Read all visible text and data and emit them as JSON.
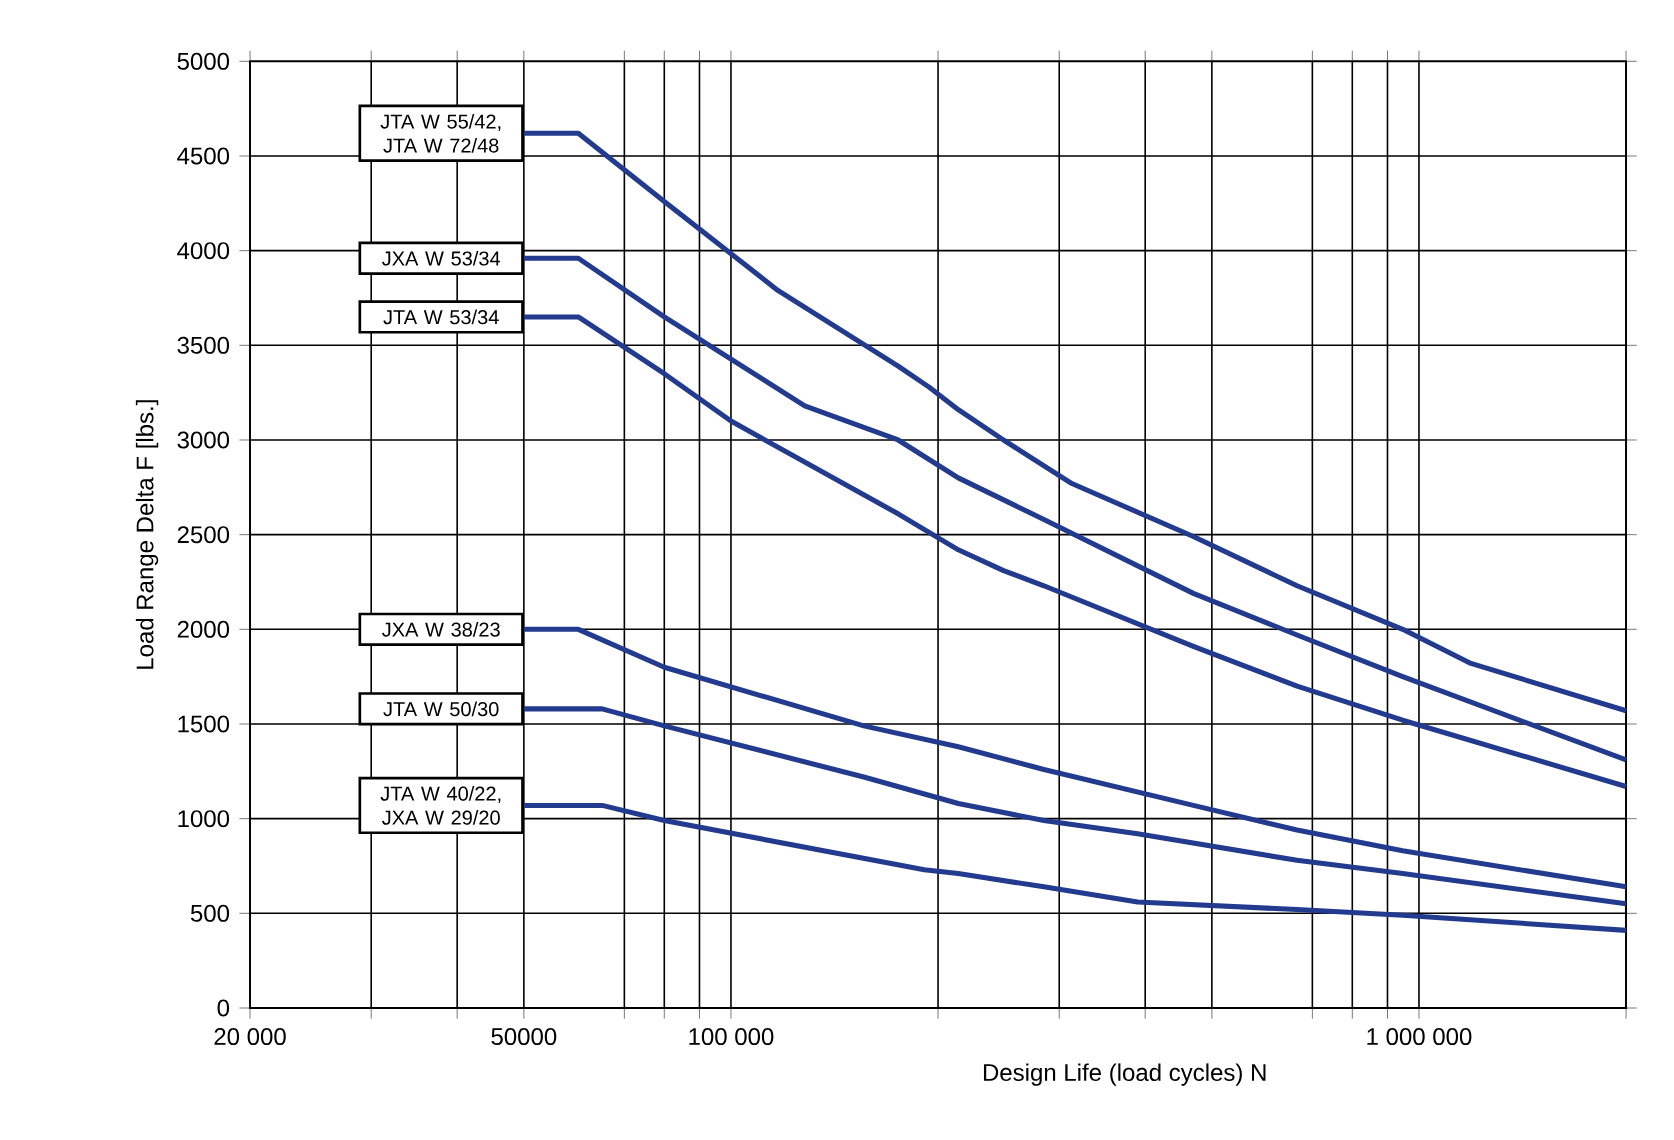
{
  "chart_data": {
    "type": "line",
    "xlabel": "Design Life (load cycles) N",
    "ylabel": "Load Range Delta F [lbs.]",
    "log": "x",
    "grid": true,
    "marker": "none",
    "line_style": "solid",
    "xlim": [
      20000,
      2000000
    ],
    "ylim": [
      0,
      5000
    ],
    "xticks": [
      {
        "value": 20000,
        "label": "20 000"
      },
      {
        "value": 30000,
        "label": null
      },
      {
        "value": 40000,
        "label": null
      },
      {
        "value": 50000,
        "label": "50000"
      },
      {
        "value": 70000,
        "label": null
      },
      {
        "value": 80000,
        "label": null
      },
      {
        "value": 90000,
        "label": null
      },
      {
        "value": 100000,
        "label": "100 000"
      },
      {
        "value": 200000,
        "label": null
      },
      {
        "value": 300000,
        "label": null
      },
      {
        "value": 400000,
        "label": null
      },
      {
        "value": 500000,
        "label": null
      },
      {
        "value": 700000,
        "label": null
      },
      {
        "value": 800000,
        "label": null
      },
      {
        "value": 900000,
        "label": null
      },
      {
        "value": 1000000,
        "label": "1 000 000"
      },
      {
        "value": 2000000,
        "label": null
      }
    ],
    "yticks": [
      0,
      500,
      1000,
      1500,
      2000,
      2500,
      3000,
      3500,
      4000,
      4500,
      5000
    ],
    "series": [
      {
        "name": "JTA W 55/42, JTA W 72/48",
        "color": "#233b8f",
        "x": [
          50000,
          60000,
          80000,
          117000,
          175000,
          194000,
          214000,
          249000,
          313000,
          470000,
          665000,
          947000,
          1190000,
          2000000
        ],
        "values": [
          4620,
          4620,
          4260,
          3790,
          3390,
          3280,
          3160,
          3000,
          2770,
          2490,
          2230,
          2000,
          1820,
          1570
        ]
      },
      {
        "name": "JXA W 53/34",
        "color": "#233b8f",
        "x": [
          50000,
          60000,
          80000,
          128000,
          175000,
          214000,
          285000,
          470000,
          665000,
          947000,
          2000000
        ],
        "values": [
          3960,
          3960,
          3650,
          3180,
          3000,
          2800,
          2580,
          2190,
          1970,
          1750,
          1310
        ]
      },
      {
        "name": "JTA W 53/34",
        "color": "#233b8f",
        "x": [
          50000,
          60000,
          80000,
          100000,
          175000,
          214000,
          249000,
          285000,
          470000,
          665000,
          947000,
          2000000
        ],
        "values": [
          3650,
          3650,
          3350,
          3100,
          2610,
          2420,
          2310,
          2230,
          1910,
          1700,
          1520,
          1170
        ]
      },
      {
        "name": "JXA W 38/23",
        "color": "#233b8f",
        "x": [
          50000,
          60000,
          80000,
          156000,
          214000,
          285000,
          470000,
          665000,
          947000,
          2000000
        ],
        "values": [
          2000,
          2000,
          1800,
          1490,
          1380,
          1260,
          1070,
          940,
          830,
          640
        ]
      },
      {
        "name": "JTA W 50/30",
        "color": "#233b8f",
        "x": [
          50000,
          65000,
          80000,
          156000,
          214000,
          285000,
          390000,
          665000,
          947000,
          2000000
        ],
        "values": [
          1580,
          1580,
          1490,
          1220,
          1080,
          990,
          920,
          780,
          710,
          550
        ]
      },
      {
        "name": "JTA W 40/22, JXA W 29/20",
        "color": "#233b8f",
        "x": [
          50000,
          65000,
          80000,
          191000,
          214000,
          285000,
          390000,
          665000,
          947000,
          2000000
        ],
        "values": [
          1070,
          1070,
          990,
          730,
          710,
          640,
          560,
          520,
          490,
          410
        ]
      }
    ]
  }
}
